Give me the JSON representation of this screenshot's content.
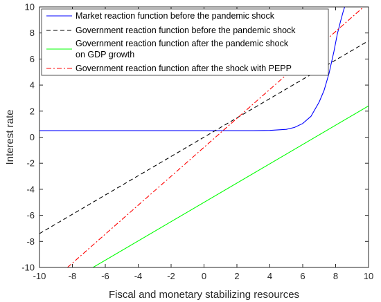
{
  "chart_data": {
    "type": "line",
    "title": "",
    "xlabel": "Fiscal and monetary stabilizing resources",
    "ylabel": "Interest rate",
    "xlim": [
      -10,
      10
    ],
    "ylim": [
      -10,
      10
    ],
    "xticks": [
      "-10",
      "-8",
      "-6",
      "-4",
      "-2",
      "0",
      "2",
      "4",
      "6",
      "8",
      "10"
    ],
    "yticks": [
      "10",
      "8",
      "6",
      "4",
      "2",
      "0",
      "-2",
      "-4",
      "-6",
      "-8",
      "-10"
    ],
    "grid": false,
    "legend_position": "top-left",
    "series": [
      {
        "name": "Market reaction function before the pandemic shock",
        "style": "solid",
        "color": "#0000ff",
        "x": [
          -10,
          -8,
          -6,
          -4,
          -2,
          0,
          1,
          2,
          3,
          4,
          5,
          5.5,
          6,
          6.5,
          7,
          7.3,
          7.6,
          7.9,
          8.1,
          8.3,
          8.45,
          8.55
        ],
        "y": [
          0.5,
          0.5,
          0.5,
          0.5,
          0.5,
          0.5,
          0.5,
          0.5,
          0.5,
          0.52,
          0.6,
          0.75,
          1.05,
          1.6,
          2.7,
          3.6,
          4.9,
          6.6,
          7.9,
          8.9,
          9.6,
          10
        ]
      },
      {
        "name": "Government reaction function before the pandemic shock",
        "style": "dashed",
        "color": "#000000",
        "x": [
          -10,
          10
        ],
        "y": [
          -7.4,
          7.4
        ]
      },
      {
        "name": "Government reaction function after the pandemic shock on GDP growth",
        "style": "solid",
        "color": "#00ff00",
        "x": [
          -6.75,
          10
        ],
        "y": [
          -10,
          2.4
        ]
      },
      {
        "name": "Government reaction function after the shock with PEPP",
        "style": "dashdot",
        "color": "#ff0000",
        "x": [
          -8.3,
          9.7
        ],
        "y": [
          -10,
          10
        ]
      }
    ],
    "legend_lines": [
      [
        "Market reaction function before the pandemic shock"
      ],
      [
        "Government reaction function before the pandemic shock"
      ],
      [
        "Government reaction function after the pandemic shock",
        "on GDP growth"
      ],
      [
        "Government reaction function after the shock with PEPP"
      ]
    ]
  }
}
